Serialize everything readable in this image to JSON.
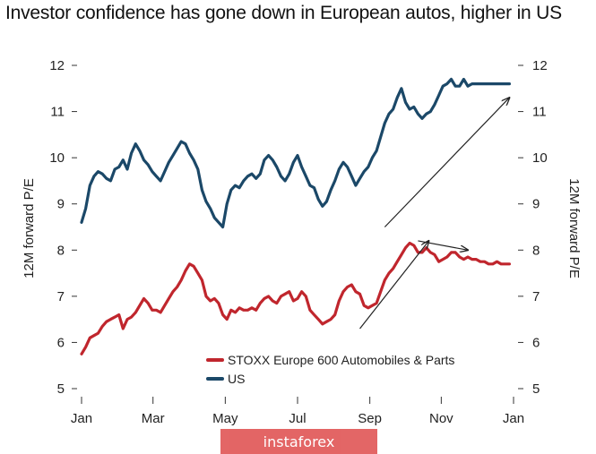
{
  "title": "Investor confidence has gone down in European autos, higher in US",
  "watermark": "instaforex",
  "chart_data": {
    "type": "line",
    "title": "Investor confidence has gone down in European autos, higher in US",
    "ylabel_left": "12M forward P/E",
    "ylabel_right": "12M forward P/E",
    "ylim": [
      5,
      12
    ],
    "yticks": [
      "5",
      "6",
      "7",
      "8",
      "9",
      "10",
      "11",
      "12"
    ],
    "xlim": [
      0,
      52
    ],
    "xticks": [
      {
        "label": "Jan",
        "x": 0
      },
      {
        "label": "Mar",
        "x": 8.6
      },
      {
        "label": "May",
        "x": 17.3
      },
      {
        "label": "Jul",
        "x": 26
      },
      {
        "label": "Sep",
        "x": 34.7
      },
      {
        "label": "Nov",
        "x": 43.3
      },
      {
        "label": "Jan",
        "x": 52
      }
    ],
    "grid": false,
    "legend_position": "bottom-right",
    "series": [
      {
        "name": "STOXX Europe 600 Automobiles & Parts",
        "color": "#c0262d",
        "x": [
          0,
          0.5,
          1,
          1.5,
          2,
          2.5,
          3,
          3.5,
          4,
          4.5,
          5,
          5.5,
          6,
          6.5,
          7,
          7.5,
          8,
          8.5,
          9,
          9.5,
          10,
          10.5,
          11,
          11.5,
          12,
          12.5,
          13,
          13.5,
          14,
          14.5,
          15,
          15.5,
          16,
          16.5,
          17,
          17.5,
          18,
          18.5,
          19,
          19.5,
          20,
          20.5,
          21,
          21.5,
          22,
          22.5,
          23,
          23.5,
          24,
          24.5,
          25,
          25.5,
          26,
          26.5,
          27,
          27.5,
          28,
          28.5,
          29,
          29.5,
          30,
          30.5,
          31,
          31.5,
          32,
          32.5,
          33,
          33.5,
          34,
          34.5,
          35,
          35.5,
          36,
          36.5,
          37,
          37.5,
          38,
          38.5,
          39,
          39.5,
          40,
          40.5,
          41,
          41.5,
          42,
          42.5,
          43,
          43.5,
          44,
          44.5,
          45,
          45.5,
          46,
          46.5,
          47,
          47.5,
          48,
          48.5,
          49,
          49.5,
          50,
          50.5,
          51,
          51.5
        ],
        "values": [
          5.75,
          5.9,
          6.1,
          6.15,
          6.2,
          6.35,
          6.45,
          6.5,
          6.55,
          6.6,
          6.3,
          6.5,
          6.55,
          6.65,
          6.8,
          6.95,
          6.85,
          6.7,
          6.7,
          6.65,
          6.8,
          6.95,
          7.1,
          7.2,
          7.35,
          7.55,
          7.7,
          7.65,
          7.5,
          7.35,
          7.0,
          6.9,
          6.95,
          6.85,
          6.6,
          6.5,
          6.7,
          6.65,
          6.75,
          6.7,
          6.7,
          6.75,
          6.7,
          6.85,
          6.95,
          7.0,
          6.9,
          6.85,
          7.0,
          7.05,
          7.1,
          6.9,
          6.95,
          7.1,
          7.0,
          6.7,
          6.6,
          6.5,
          6.4,
          6.45,
          6.5,
          6.6,
          6.9,
          7.1,
          7.2,
          7.25,
          7.1,
          7.05,
          6.8,
          6.75,
          6.8,
          6.85,
          7.1,
          7.35,
          7.5,
          7.6,
          7.75,
          7.9,
          8.05,
          8.15,
          8.1,
          7.95,
          7.95,
          8.05,
          7.95,
          7.9,
          7.75,
          7.8,
          7.85,
          7.95,
          7.95,
          7.85,
          7.8,
          7.85,
          7.8,
          7.8,
          7.75,
          7.75,
          7.7,
          7.7,
          7.75,
          7.7,
          7.7,
          7.7
        ]
      },
      {
        "name": "US",
        "color": "#1b4868",
        "x": [
          0,
          0.5,
          1,
          1.5,
          2,
          2.5,
          3,
          3.5,
          4,
          4.5,
          5,
          5.5,
          6,
          6.5,
          7,
          7.5,
          8,
          8.5,
          9,
          9.5,
          10,
          10.5,
          11,
          11.5,
          12,
          12.5,
          13,
          13.5,
          14,
          14.5,
          15,
          15.5,
          16,
          16.5,
          17,
          17.5,
          18,
          18.5,
          19,
          19.5,
          20,
          20.5,
          21,
          21.5,
          22,
          22.5,
          23,
          23.5,
          24,
          24.5,
          25,
          25.5,
          26,
          26.5,
          27,
          27.5,
          28,
          28.5,
          29,
          29.5,
          30,
          30.5,
          31,
          31.5,
          32,
          32.5,
          33,
          33.5,
          34,
          34.5,
          35,
          35.5,
          36,
          36.5,
          37,
          37.5,
          38,
          38.5,
          39,
          39.5,
          40,
          40.5,
          41,
          41.5,
          42,
          42.5,
          43,
          43.5,
          44,
          44.5,
          45,
          45.5,
          46,
          46.5,
          47,
          47.5,
          48,
          48.5,
          49,
          49.5,
          50,
          50.5,
          51,
          51.5
        ],
        "values": [
          8.6,
          8.9,
          9.4,
          9.6,
          9.7,
          9.65,
          9.55,
          9.5,
          9.75,
          9.8,
          9.95,
          9.75,
          10.1,
          10.3,
          10.15,
          9.95,
          9.85,
          9.7,
          9.6,
          9.5,
          9.7,
          9.9,
          10.05,
          10.2,
          10.35,
          10.3,
          10.1,
          9.95,
          9.75,
          9.3,
          9.05,
          8.9,
          8.7,
          8.6,
          8.5,
          9.0,
          9.3,
          9.4,
          9.35,
          9.5,
          9.6,
          9.65,
          9.55,
          9.65,
          9.95,
          10.05,
          9.95,
          9.8,
          9.6,
          9.5,
          9.65,
          9.9,
          10.05,
          9.8,
          9.6,
          9.4,
          9.35,
          9.1,
          8.95,
          9.05,
          9.3,
          9.5,
          9.75,
          9.9,
          9.8,
          9.6,
          9.4,
          9.55,
          9.7,
          9.8,
          10.0,
          10.15,
          10.45,
          10.75,
          10.95,
          11.05,
          11.3,
          11.5,
          11.2,
          11.05,
          11.1,
          10.95,
          10.85,
          10.95,
          11.0,
          11.15,
          11.35,
          11.55,
          11.6,
          11.7,
          11.55,
          11.55,
          11.7,
          11.55,
          11.6,
          11.6,
          11.6,
          11.6,
          11.6,
          11.6,
          11.6,
          11.6,
          11.6,
          11.6
        ]
      }
    ],
    "legend": [
      {
        "name": "STOXX Europe 600 Automobiles & Parts",
        "color": "#c0262d"
      },
      {
        "name": "US",
        "color": "#1b4868"
      }
    ],
    "annotations": [
      {
        "type": "arrow",
        "from": [
          33.5,
          6.3
        ],
        "to": [
          41.8,
          8.2
        ]
      },
      {
        "type": "arrow",
        "from": [
          40.5,
          8.2
        ],
        "to": [
          46.5,
          8.0
        ]
      },
      {
        "type": "arrow",
        "from": [
          36.5,
          8.5
        ],
        "to": [
          51.5,
          11.3
        ]
      }
    ]
  }
}
